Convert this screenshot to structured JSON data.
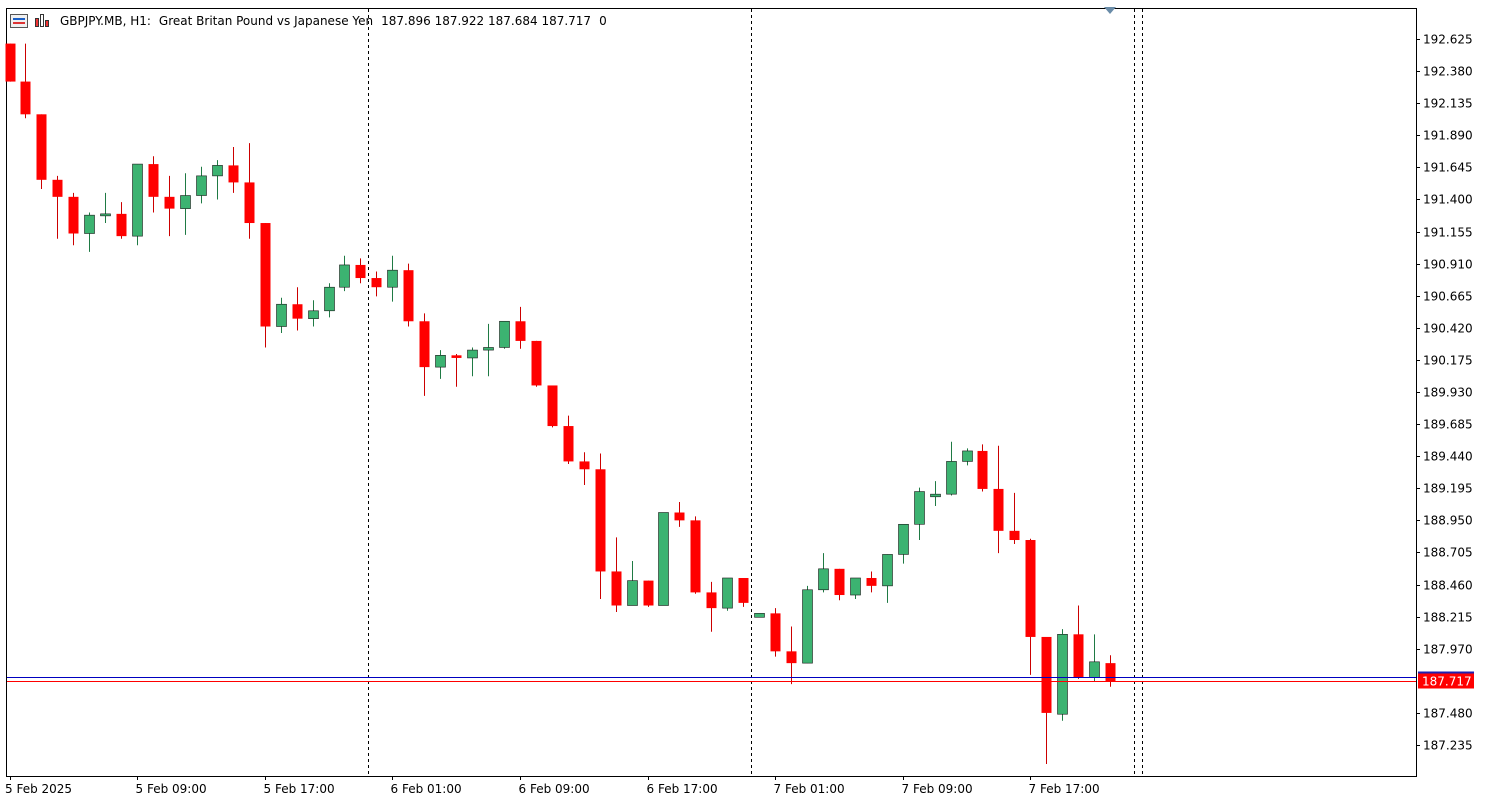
{
  "header": {
    "symbol": "GBPJPY.MB, H1:",
    "description": "Great Britan Pound vs Japanese Yen",
    "ohlc": "187.896 187.922 187.684 187.717",
    "volume": "0"
  },
  "current_price_label": "187.717",
  "colors": {
    "bull": "#3cb371",
    "bear": "#ff0000",
    "ask_line": "#0000c0",
    "bid_line": "#ff0000"
  },
  "chart_data": {
    "type": "candlestick",
    "timeframe": "H1",
    "y_range": [
      187.05,
      192.8
    ],
    "y_ticks": [
      "192.625",
      "192.380",
      "192.135",
      "191.890",
      "191.645",
      "191.400",
      "191.155",
      "190.910",
      "190.665",
      "190.420",
      "190.175",
      "189.930",
      "189.685",
      "189.440",
      "189.195",
      "188.950",
      "188.705",
      "188.460",
      "188.215",
      "187.970",
      "187.480",
      "187.235"
    ],
    "x_ticks": [
      "5 Feb 2025",
      "5 Feb 09:00",
      "5 Feb 17:00",
      "6 Feb 01:00",
      "6 Feb 09:00",
      "6 Feb 17:00",
      "7 Feb 01:00",
      "7 Feb 09:00",
      "7 Feb 17:00"
    ],
    "day_separators_after_bar": [
      22.5,
      46.5,
      70.5
    ],
    "candles": [
      [
        192.59,
        192.59,
        192.3,
        192.3
      ],
      [
        192.3,
        192.59,
        192.02,
        192.05
      ],
      [
        192.05,
        192.05,
        191.48,
        191.55
      ],
      [
        191.55,
        191.58,
        191.1,
        191.42
      ],
      [
        191.42,
        191.45,
        191.05,
        191.14
      ],
      [
        191.14,
        191.3,
        191.0,
        191.28
      ],
      [
        191.28,
        191.45,
        191.22,
        191.29
      ],
      [
        191.29,
        191.38,
        191.1,
        191.12
      ],
      [
        191.12,
        191.67,
        191.05,
        191.67
      ],
      [
        191.67,
        191.73,
        191.3,
        191.42
      ],
      [
        191.42,
        191.58,
        191.12,
        191.33
      ],
      [
        191.33,
        191.6,
        191.13,
        191.43
      ],
      [
        191.43,
        191.65,
        191.37,
        191.58
      ],
      [
        191.58,
        191.7,
        191.4,
        191.66
      ],
      [
        191.66,
        191.8,
        191.45,
        191.53
      ],
      [
        191.53,
        191.83,
        191.1,
        191.22
      ],
      [
        191.22,
        191.22,
        190.27,
        190.43
      ],
      [
        190.43,
        190.65,
        190.38,
        190.6
      ],
      [
        190.6,
        190.73,
        190.4,
        190.49
      ],
      [
        190.49,
        190.63,
        190.43,
        190.55
      ],
      [
        190.55,
        190.76,
        190.5,
        190.73
      ],
      [
        190.73,
        190.97,
        190.7,
        190.9
      ],
      [
        190.9,
        190.95,
        190.76,
        190.8
      ],
      [
        190.8,
        190.85,
        190.66,
        190.73
      ],
      [
        190.73,
        190.97,
        190.62,
        190.86
      ],
      [
        190.86,
        190.91,
        190.43,
        190.47
      ],
      [
        190.47,
        190.53,
        189.9,
        190.12
      ],
      [
        190.12,
        190.25,
        190.03,
        190.21
      ],
      [
        190.21,
        190.22,
        189.97,
        190.19
      ],
      [
        190.19,
        190.27,
        190.05,
        190.25
      ],
      [
        190.25,
        190.45,
        190.05,
        190.27
      ],
      [
        190.27,
        190.47,
        190.26,
        190.47
      ],
      [
        190.47,
        190.58,
        190.26,
        190.32
      ],
      [
        190.32,
        190.32,
        189.97,
        189.98
      ],
      [
        189.98,
        189.98,
        189.66,
        189.67
      ],
      [
        189.67,
        189.75,
        189.38,
        189.4
      ],
      [
        189.4,
        189.47,
        189.22,
        189.34
      ],
      [
        189.34,
        189.46,
        188.35,
        188.56
      ],
      [
        188.56,
        188.82,
        188.25,
        188.3
      ],
      [
        188.3,
        188.64,
        188.3,
        188.49
      ],
      [
        188.49,
        188.49,
        188.29,
        188.3
      ],
      [
        188.3,
        189.01,
        188.3,
        189.01
      ],
      [
        189.01,
        189.09,
        188.9,
        188.95
      ],
      [
        188.95,
        188.98,
        188.39,
        188.4
      ],
      [
        188.4,
        188.48,
        188.1,
        188.28
      ],
      [
        188.28,
        188.51,
        188.26,
        188.51
      ],
      [
        188.51,
        188.51,
        188.29,
        188.32
      ],
      [
        188.21,
        188.24,
        188.21,
        188.24
      ],
      [
        188.24,
        188.28,
        187.91,
        187.95
      ],
      [
        187.95,
        188.14,
        187.7,
        187.86
      ],
      [
        187.86,
        188.45,
        187.86,
        188.42
      ],
      [
        188.42,
        188.7,
        188.4,
        188.58
      ],
      [
        188.58,
        188.58,
        188.34,
        188.38
      ],
      [
        188.38,
        188.51,
        188.35,
        188.51
      ],
      [
        188.51,
        188.56,
        188.4,
        188.45
      ],
      [
        188.45,
        188.69,
        188.32,
        188.69
      ],
      [
        188.69,
        188.92,
        188.62,
        188.92
      ],
      [
        188.92,
        189.2,
        188.8,
        189.17
      ],
      [
        189.13,
        189.25,
        189.06,
        189.15
      ],
      [
        189.15,
        189.55,
        189.14,
        189.4
      ],
      [
        189.4,
        189.5,
        189.37,
        189.48
      ],
      [
        189.48,
        189.53,
        189.17,
        189.19
      ],
      [
        189.19,
        189.52,
        188.7,
        188.87
      ],
      [
        188.87,
        189.16,
        188.77,
        188.8
      ],
      [
        188.8,
        188.81,
        187.77,
        188.06
      ],
      [
        188.06,
        188.06,
        187.09,
        187.48
      ],
      [
        187.47,
        188.12,
        187.42,
        188.08
      ],
      [
        188.08,
        188.3,
        187.74,
        187.75
      ],
      [
        187.75,
        188.08,
        187.72,
        187.87
      ],
      [
        187.86,
        187.92,
        187.68,
        187.72
      ]
    ]
  }
}
